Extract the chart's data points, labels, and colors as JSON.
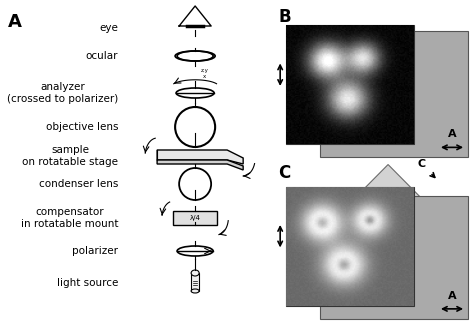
{
  "bg_color": "#ffffff",
  "label_A": "A",
  "label_B": "B",
  "label_C": "C",
  "microscope_labels": [
    "eye",
    "ocular",
    "analyzer\n(crossed to polarizer)",
    "objective lens",
    "sample\non rotatable stage",
    "condenser lens",
    "compensator\nin rotatable mount",
    "polarizer",
    "light source"
  ],
  "gray_color": "#aaaaaa",
  "dark_color": "#222222",
  "text_color": "#000000",
  "font_size_labels": 7.5,
  "font_size_panel": 11
}
